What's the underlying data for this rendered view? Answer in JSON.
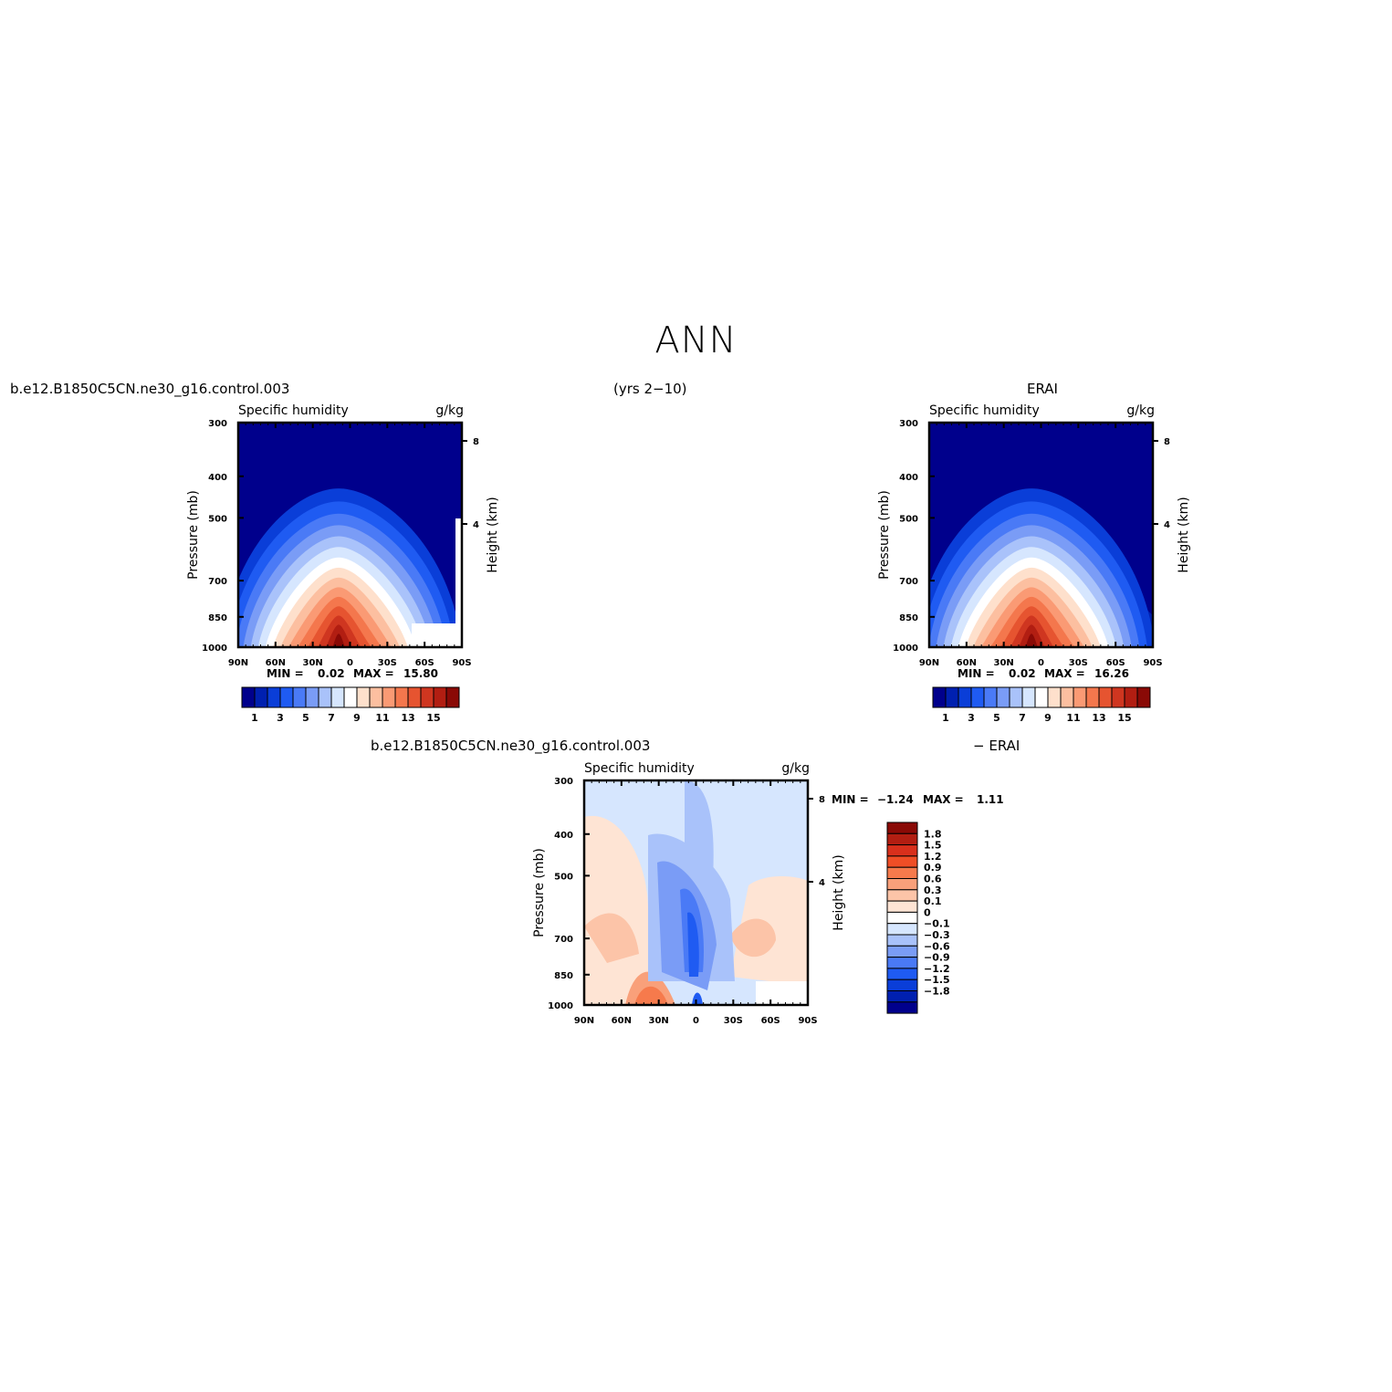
{
  "figure": {
    "title": "ANN",
    "left_header": "b.e12.B1850C5CN.ne30_g16.control.003",
    "center_header": "(yrs 2−10)",
    "right_header": "ERAI",
    "diff_header_left": "b.e12.B1850C5CN.ne30_g16.control.003",
    "diff_header_right": "− ERAI"
  },
  "chart_data": [
    {
      "type": "heatmap",
      "id": "model",
      "title": "Specific humidity",
      "units": "g/kg",
      "ylabel": "Pressure (mb)",
      "y2label": "Height (km)",
      "xticks": [
        "90N",
        "60N",
        "30N",
        "0",
        "30S",
        "60S",
        "90S"
      ],
      "yticks": [
        300,
        400,
        500,
        700,
        850,
        1000
      ],
      "y2ticks": [
        8,
        4
      ],
      "ylim": [
        300,
        1000
      ],
      "min_label": "MIN =",
      "min_value": "0.02",
      "max_label": "MAX =",
      "max_value": "15.80",
      "min": 0.02,
      "max": 15.8,
      "colorbar": {
        "labels": [
          "1",
          "3",
          "5",
          "7",
          "9",
          "11",
          "13",
          "15"
        ],
        "colors": [
          "#00008c",
          "#0020b0",
          "#0a3ed8",
          "#1f5bf2",
          "#4a7af6",
          "#7a9cf6",
          "#a9c2fa",
          "#d6e6fe",
          "#ffffff",
          "#fee0cc",
          "#fcbfa0",
          "#fa9a74",
          "#f4774d",
          "#e65430",
          "#cf3620",
          "#b21e12",
          "#8a0a06"
        ]
      }
    },
    {
      "type": "heatmap",
      "id": "obs",
      "title": "Specific humidity",
      "units": "g/kg",
      "ylabel": "Pressure (mb)",
      "y2label": "Height (km)",
      "xticks": [
        "90N",
        "60N",
        "30N",
        "0",
        "30S",
        "60S",
        "90S"
      ],
      "yticks": [
        300,
        400,
        500,
        700,
        850,
        1000
      ],
      "y2ticks": [
        8,
        4
      ],
      "ylim": [
        300,
        1000
      ],
      "min_label": "MIN =",
      "min_value": "0.02",
      "max_label": "MAX =",
      "max_value": "16.26",
      "min": 0.02,
      "max": 16.26,
      "colorbar": {
        "labels": [
          "1",
          "3",
          "5",
          "7",
          "9",
          "11",
          "13",
          "15"
        ],
        "colors": [
          "#00008c",
          "#0020b0",
          "#0a3ed8",
          "#1f5bf2",
          "#4a7af6",
          "#7a9cf6",
          "#a9c2fa",
          "#d6e6fe",
          "#ffffff",
          "#fee0cc",
          "#fcbfa0",
          "#fa9a74",
          "#f4774d",
          "#e65430",
          "#cf3620",
          "#b21e12",
          "#8a0a06"
        ]
      }
    },
    {
      "type": "heatmap",
      "id": "diff",
      "title": "Specific humidity",
      "units": "g/kg",
      "ylabel": "Pressure (mb)",
      "y2label": "Height (km)",
      "xticks": [
        "90N",
        "60N",
        "30N",
        "0",
        "30S",
        "60S",
        "90S"
      ],
      "yticks": [
        300,
        400,
        500,
        700,
        850,
        1000
      ],
      "y2ticks": [
        8,
        4
      ],
      "ylim": [
        300,
        1000
      ],
      "min_label": "MIN =",
      "min_value": "−1.24",
      "max_label": "MAX =",
      "max_value": "1.11",
      "min": -1.24,
      "max": 1.11,
      "colorbar": {
        "labels": [
          "1.8",
          "1.5",
          "1.2",
          "0.9",
          "0.6",
          "0.3",
          "0.1",
          "0",
          "−0.1",
          "−0.3",
          "−0.6",
          "−0.9",
          "−1.2",
          "−1.5",
          "−1.8"
        ],
        "colors": [
          "#8a0a06",
          "#b21e12",
          "#d8301c",
          "#ef4e26",
          "#f67a4c",
          "#f9a07a",
          "#fcc4a8",
          "#fee4d4",
          "#ffffff",
          "#d6e6fe",
          "#a9c2fa",
          "#7a9cf6",
          "#4a7af6",
          "#1f5bf2",
          "#0a3ed8",
          "#0020b0",
          "#00008c"
        ]
      }
    }
  ]
}
